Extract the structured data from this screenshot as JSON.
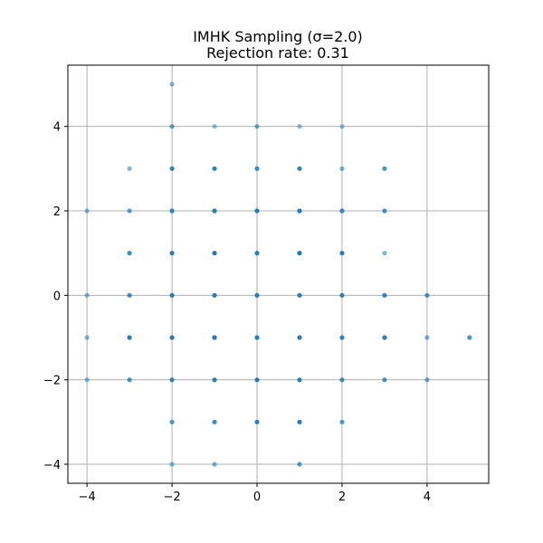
{
  "chart_data": {
    "type": "scatter",
    "title": "IMHK Sampling (σ=2.0)",
    "subtitle": "Rejection rate: 0.31",
    "xlabel": "",
    "ylabel": "",
    "xlim": [
      -4.45,
      5.45
    ],
    "ylim": [
      -4.45,
      5.45
    ],
    "xticks": [
      -4,
      -2,
      0,
      2,
      4
    ],
    "yticks": [
      -4,
      -2,
      0,
      2,
      4
    ],
    "xtick_labels": [
      "−4",
      "−2",
      "0",
      "2",
      "4"
    ],
    "ytick_labels": [
      "−4",
      "−2",
      "0",
      "2",
      "4"
    ],
    "grid": true,
    "color": "#1f77b4",
    "points": [
      {
        "x": -2,
        "y": 5,
        "density": 0.55
      },
      {
        "x": -2,
        "y": 4,
        "density": 0.7
      },
      {
        "x": -1,
        "y": 4,
        "density": 0.5
      },
      {
        "x": 0,
        "y": 4,
        "density": 0.65
      },
      {
        "x": 1,
        "y": 4,
        "density": 0.5
      },
      {
        "x": 2,
        "y": 4,
        "density": 0.5
      },
      {
        "x": -3,
        "y": 3,
        "density": 0.55
      },
      {
        "x": -2,
        "y": 3,
        "density": 0.9
      },
      {
        "x": -1,
        "y": 3,
        "density": 0.9
      },
      {
        "x": 0,
        "y": 3,
        "density": 0.85
      },
      {
        "x": 1,
        "y": 3,
        "density": 0.9
      },
      {
        "x": 2,
        "y": 3,
        "density": 0.6
      },
      {
        "x": 3,
        "y": 3,
        "density": 0.8
      },
      {
        "x": -4,
        "y": 2,
        "density": 0.55
      },
      {
        "x": -3,
        "y": 2,
        "density": 0.7
      },
      {
        "x": -2,
        "y": 2,
        "density": 0.9
      },
      {
        "x": -1,
        "y": 2,
        "density": 0.95
      },
      {
        "x": 0,
        "y": 2,
        "density": 0.95
      },
      {
        "x": 1,
        "y": 2,
        "density": 0.95
      },
      {
        "x": 2,
        "y": 2,
        "density": 0.85
      },
      {
        "x": 3,
        "y": 2,
        "density": 0.8
      },
      {
        "x": -3,
        "y": 1,
        "density": 0.85
      },
      {
        "x": -2,
        "y": 1,
        "density": 0.95
      },
      {
        "x": -1,
        "y": 1,
        "density": 1.0
      },
      {
        "x": 0,
        "y": 1,
        "density": 0.95
      },
      {
        "x": 1,
        "y": 1,
        "density": 1.0
      },
      {
        "x": 2,
        "y": 1,
        "density": 0.95
      },
      {
        "x": 3,
        "y": 1,
        "density": 0.55
      },
      {
        "x": -4,
        "y": 0,
        "density": 0.55
      },
      {
        "x": -3,
        "y": 0,
        "density": 0.85
      },
      {
        "x": -2,
        "y": 0,
        "density": 0.95
      },
      {
        "x": -1,
        "y": 0,
        "density": 0.95
      },
      {
        "x": 0,
        "y": 0,
        "density": 0.95
      },
      {
        "x": 1,
        "y": 0,
        "density": 0.95
      },
      {
        "x": 2,
        "y": 0,
        "density": 0.9
      },
      {
        "x": 3,
        "y": 0,
        "density": 0.9
      },
      {
        "x": 4,
        "y": 0,
        "density": 0.8
      },
      {
        "x": -4,
        "y": -1,
        "density": 0.55
      },
      {
        "x": -3,
        "y": -1,
        "density": 0.95
      },
      {
        "x": -2,
        "y": -1,
        "density": 0.95
      },
      {
        "x": -1,
        "y": -1,
        "density": 1.0
      },
      {
        "x": 0,
        "y": -1,
        "density": 0.95
      },
      {
        "x": 1,
        "y": -1,
        "density": 0.95
      },
      {
        "x": 2,
        "y": -1,
        "density": 0.9
      },
      {
        "x": 3,
        "y": -1,
        "density": 0.95
      },
      {
        "x": 4,
        "y": -1,
        "density": 0.6
      },
      {
        "x": 5,
        "y": -1,
        "density": 0.8
      },
      {
        "x": -4,
        "y": -2,
        "density": 0.55
      },
      {
        "x": -3,
        "y": -2,
        "density": 0.8
      },
      {
        "x": -2,
        "y": -2,
        "density": 0.9
      },
      {
        "x": -1,
        "y": -2,
        "density": 0.95
      },
      {
        "x": 0,
        "y": -2,
        "density": 0.95
      },
      {
        "x": 1,
        "y": -2,
        "density": 0.95
      },
      {
        "x": 2,
        "y": -2,
        "density": 0.85
      },
      {
        "x": 3,
        "y": -2,
        "density": 0.8
      },
      {
        "x": 4,
        "y": -2,
        "density": 0.65
      },
      {
        "x": -2,
        "y": -3,
        "density": 0.75
      },
      {
        "x": -1,
        "y": -3,
        "density": 0.85
      },
      {
        "x": 0,
        "y": -3,
        "density": 0.9
      },
      {
        "x": 1,
        "y": -3,
        "density": 0.95
      },
      {
        "x": 2,
        "y": -3,
        "density": 0.75
      },
      {
        "x": -2,
        "y": -4,
        "density": 0.55
      },
      {
        "x": -1,
        "y": -4,
        "density": 0.6
      },
      {
        "x": 1,
        "y": -4,
        "density": 0.75
      }
    ]
  }
}
